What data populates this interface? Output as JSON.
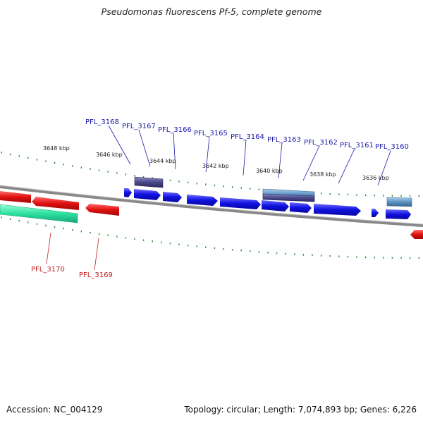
{
  "title": "Pseudomonas fluorescens Pf-5, complete genome",
  "footer": {
    "accession": "Accession: NC_004129",
    "topology": "Topology: circular; Length: 7,074,893 bp; Genes: 6,226"
  },
  "colors": {
    "forward_gene": "#1a1ae0",
    "reverse_gene": "#e01a1a",
    "reverse_rna": "#2ee0a0",
    "forward_rna_dark": "#4a4a8a",
    "forward_rna_light": "#5a90c0",
    "backbone": "#888888",
    "tick": "#2a8a2a",
    "label_blue": "#1a1aa8",
    "label_red": "#c02020"
  },
  "scale_labels": [
    "3648 kbp",
    "3646 kbp",
    "3644 kbp",
    "3642 kbp",
    "3640 kbp",
    "3638 kbp",
    "3636 kbp"
  ],
  "forward_labels": [
    "PFL_3168",
    "PFL_3167",
    "PFL_3166",
    "PFL_3165",
    "PFL_3164",
    "PFL_3163",
    "PFL_3162",
    "PFL_3161",
    "PFL_3160"
  ],
  "reverse_labels": [
    "PFL_3170",
    "PFL_3169"
  ]
}
